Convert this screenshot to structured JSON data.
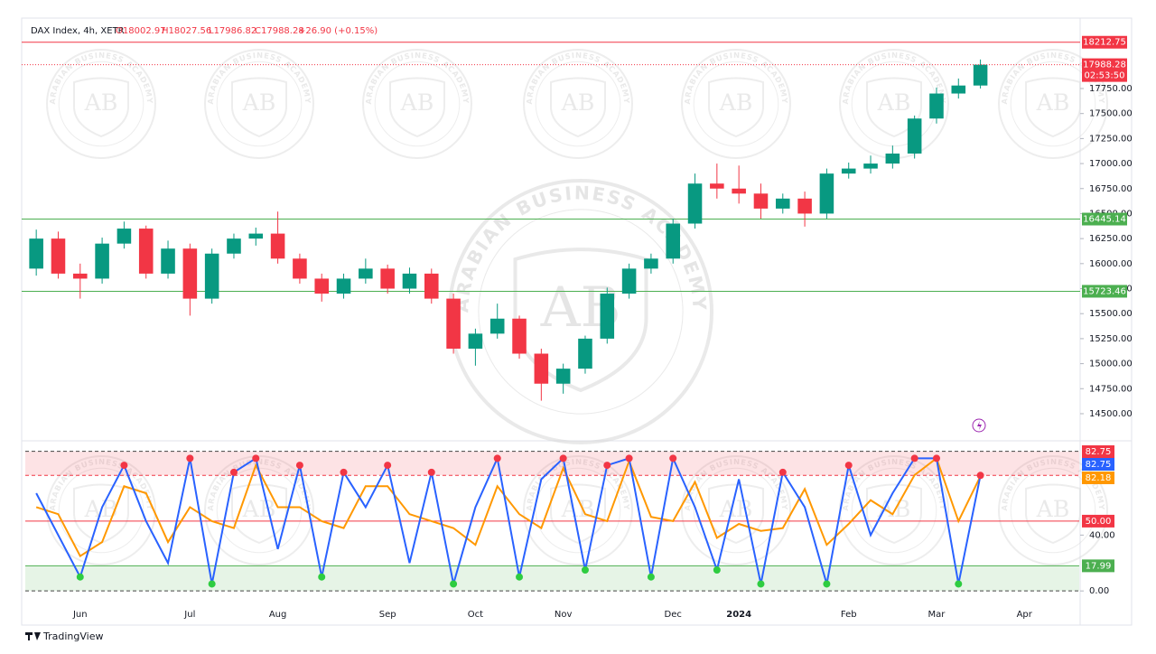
{
  "chart_data": {
    "type": "candlestick",
    "header": {
      "symbol": "DAX Index, 4h, XETR",
      "open": "O18002.97",
      "high": "H18027.56",
      "low": "L17986.82",
      "close": "C17988.28",
      "change": "+26.90 (+0.15%)"
    },
    "watermark": {
      "logo": "AB",
      "text": "ARABIAN BUSINESS ACADEMY"
    },
    "footer": "TradingView",
    "categories": [
      null,
      null,
      "Jun",
      null,
      null,
      null,
      null,
      "Jul",
      null,
      null,
      null,
      "Aug",
      null,
      null,
      null,
      null,
      "Sep",
      null,
      null,
      null,
      "Oct",
      null,
      null,
      null,
      "Nov",
      null,
      null,
      null,
      null,
      "Dec",
      null,
      null,
      "2024",
      null,
      null,
      null,
      null,
      "Feb",
      null,
      null,
      null,
      "Mar",
      null,
      null,
      null,
      "Apr",
      null,
      null
    ],
    "open": [
      15950,
      16250,
      15900,
      15850,
      16200,
      16350,
      15900,
      16150,
      15650,
      16100,
      16250,
      16300,
      16050,
      15850,
      15700,
      15850,
      15950,
      15750,
      15900,
      15650,
      15150,
      15300,
      15450,
      15100,
      14800,
      14950,
      15250,
      15700,
      15950,
      16050,
      16400,
      16800,
      16750,
      16700,
      16550,
      16650,
      16500,
      16900,
      16950,
      17000,
      17100,
      17450,
      17700,
      17780,
      null,
      null,
      null,
      null
    ],
    "high": [
      16340,
      16320,
      16000,
      16260,
      16420,
      16380,
      16230,
      16200,
      16150,
      16300,
      16360,
      16520,
      16100,
      15900,
      15900,
      16050,
      15990,
      15960,
      15950,
      15700,
      15350,
      15600,
      15480,
      15150,
      15000,
      15280,
      15760,
      16000,
      16100,
      16450,
      16900,
      17000,
      16980,
      16800,
      16700,
      16720,
      16950,
      17010,
      17080,
      17180,
      17480,
      17760,
      17850,
      18040,
      null,
      null,
      null,
      null
    ],
    "low": [
      15880,
      15850,
      15650,
      15800,
      16150,
      15850,
      15850,
      15480,
      15600,
      16050,
      16180,
      16000,
      15800,
      15620,
      15650,
      15800,
      15700,
      15700,
      15600,
      15100,
      14980,
      15250,
      15050,
      14630,
      14700,
      14900,
      15200,
      15650,
      15900,
      16000,
      16350,
      16650,
      16600,
      16450,
      16500,
      16370,
      16450,
      16850,
      16900,
      16950,
      17050,
      17400,
      17650,
      17750,
      null,
      null,
      null,
      null
    ],
    "close": [
      16250,
      15900,
      15850,
      16200,
      16350,
      15900,
      16150,
      15650,
      16100,
      16250,
      16300,
      16050,
      15850,
      15700,
      15850,
      15950,
      15750,
      15900,
      15650,
      15150,
      15300,
      15450,
      15100,
      14800,
      14950,
      15250,
      15700,
      15950,
      16050,
      16400,
      16800,
      16750,
      16700,
      16550,
      16650,
      16500,
      16900,
      16950,
      17000,
      17100,
      17450,
      17700,
      17780,
      17988.28,
      null,
      null,
      null,
      null
    ],
    "colors": {
      "up": "#089981",
      "down": "#f23645"
    },
    "ylim": [
      14283,
      18382
    ],
    "yticks": [
      {
        "value": 14500,
        "label": "14500.00"
      },
      {
        "value": 14750,
        "label": "14750.00"
      },
      {
        "value": 15000,
        "label": "15000.00"
      },
      {
        "value": 15250,
        "label": "15250.00"
      },
      {
        "value": 15500,
        "label": "15500.00"
      },
      {
        "value": 15750,
        "label": "15750.00"
      },
      {
        "value": 16000,
        "label": "16000.00"
      },
      {
        "value": 16250,
        "label": "16250.00"
      },
      {
        "value": 16500,
        "label": "16500.00"
      },
      {
        "value": 16750,
        "label": "16750.00"
      },
      {
        "value": 17000,
        "label": "17000.00"
      },
      {
        "value": 17250,
        "label": "17250.00"
      },
      {
        "value": 17500,
        "label": "17500.00"
      },
      {
        "value": 17750,
        "label": "17750.00"
      }
    ],
    "levels": [
      {
        "value": 18212.75,
        "color": "#f23645"
      },
      {
        "value": 16445.14,
        "color": "#4caf50"
      },
      {
        "value": 15723.46,
        "color": "#4caf50"
      }
    ],
    "countdown": "02:53:50",
    "oscillator": {
      "type": "line",
      "ylim": [
        -7,
        103
      ],
      "yticks": [
        {
          "value": 0,
          "label": "0.00"
        },
        {
          "value": 40,
          "label": "40.00"
        }
      ],
      "zone_bounds": [
        0,
        100
      ],
      "levels": [
        {
          "value": 82.75,
          "color": "#f23645"
        },
        {
          "value": 50,
          "label": "50.00",
          "color": "#f23645"
        },
        {
          "value": 17.99,
          "color": "#4caf50"
        }
      ],
      "series": [
        {
          "color": "#2962ff",
          "values": [
            70,
            40,
            10,
            60,
            90,
            50,
            20,
            95,
            5,
            85,
            95,
            30,
            90,
            10,
            85,
            60,
            90,
            20,
            85,
            5,
            60,
            95,
            10,
            80,
            95,
            15,
            90,
            95,
            10,
            95,
            60,
            15,
            80,
            5,
            85,
            60,
            5,
            90,
            40,
            70,
            95,
            95,
            5,
            82.75,
            null,
            null,
            null,
            null
          ]
        },
        {
          "color": "#ff9800",
          "values": [
            60,
            55,
            25,
            35,
            75,
            70,
            35,
            60,
            50,
            45,
            90,
            60,
            60,
            50,
            45,
            75,
            75,
            55,
            50,
            45,
            33,
            75,
            55,
            45,
            88,
            55,
            50,
            93,
            53,
            50,
            78,
            38,
            48,
            43,
            45,
            73,
            33,
            48,
            65,
            55,
            83,
            95,
            50,
            82.18,
            null,
            null,
            null,
            null
          ]
        }
      ]
    }
  }
}
